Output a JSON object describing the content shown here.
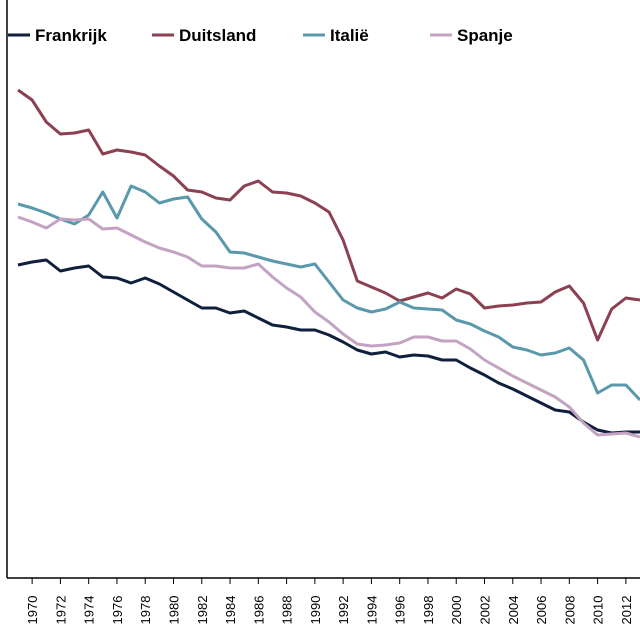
{
  "chart_data": {
    "type": "line",
    "title": "",
    "xlabel": "",
    "ylabel": "",
    "x_ticks": [
      "1970",
      "1972",
      "1974",
      "1976",
      "1978",
      "1980",
      "1982",
      "1984",
      "1986",
      "1988",
      "1990",
      "1992",
      "1994",
      "1996",
      "1998",
      "2000",
      "2002",
      "2004",
      "2006",
      "2008",
      "2010",
      "2012"
    ],
    "xlim": [
      1969,
      2013
    ],
    "legend_position": "top",
    "grid": false,
    "x": [
      1969,
      1970,
      1971,
      1972,
      1973,
      1974,
      1975,
      1976,
      1977,
      1978,
      1979,
      1980,
      1981,
      1982,
      1983,
      1984,
      1985,
      1986,
      1987,
      1988,
      1989,
      1990,
      1991,
      1992,
      1993,
      1994,
      1995,
      1996,
      1997,
      1998,
      1999,
      2000,
      2001,
      2002,
      2003,
      2004,
      2005,
      2006,
      2007,
      2008,
      2009,
      2010,
      2011,
      2012,
      2013
    ],
    "series": [
      {
        "name": "Frankrijk",
        "color": "#0f1f3d",
        "values": [
          375,
          378,
          380,
          369,
          372,
          374,
          363,
          362,
          357,
          362,
          356,
          348,
          340,
          332,
          332,
          327,
          329,
          322,
          315,
          313,
          310,
          310,
          305,
          298,
          290,
          286,
          288,
          283,
          285,
          284,
          280,
          280,
          272,
          265,
          257,
          251,
          244,
          237,
          230,
          228,
          218,
          210,
          207,
          208,
          208
        ]
      },
      {
        "name": "Duitsland",
        "color": "#8c4152",
        "values": [
          550,
          540,
          518,
          506,
          507,
          510,
          486,
          490,
          488,
          485,
          474,
          464,
          450,
          448,
          442,
          440,
          454,
          459,
          448,
          447,
          444,
          437,
          428,
          400,
          359,
          353,
          347,
          339,
          343,
          347,
          342,
          351,
          346,
          332,
          334,
          335,
          337,
          338,
          348,
          354,
          337,
          300,
          331,
          342,
          340
        ]
      },
      {
        "name": "Italië",
        "color": "#5a98ac",
        "values": [
          436,
          432,
          427,
          421,
          416,
          425,
          448,
          422,
          454,
          448,
          437,
          441,
          443,
          421,
          408,
          388,
          387,
          383,
          379,
          376,
          373,
          376,
          358,
          340,
          332,
          328,
          331,
          338,
          332,
          331,
          330,
          320,
          316,
          309,
          303,
          293,
          290,
          285,
          287,
          292,
          280,
          247,
          255,
          255,
          240
        ]
      },
      {
        "name": "Spanje",
        "color": "#c3a2c2",
        "values": [
          423,
          418,
          412,
          421,
          420,
          421,
          411,
          412,
          405,
          398,
          392,
          388,
          383,
          374,
          374,
          372,
          372,
          376,
          363,
          352,
          343,
          328,
          318,
          306,
          296,
          294,
          295,
          297,
          303,
          303,
          299,
          299,
          291,
          280,
          272,
          264,
          257,
          250,
          243,
          233,
          217,
          205,
          206,
          207,
          203
        ]
      }
    ]
  }
}
